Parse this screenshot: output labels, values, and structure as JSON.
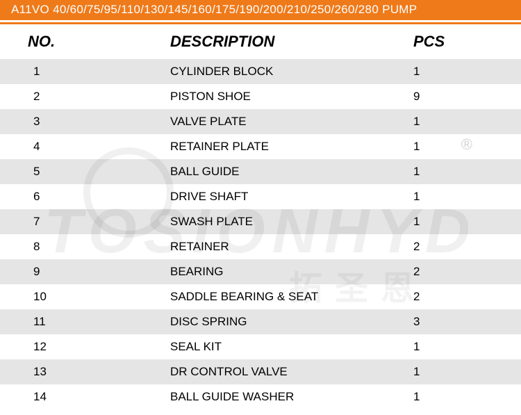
{
  "title": "A11VO 40/60/75/95/110/130/145/160/175/190/200/210/250/260/280  PUMP",
  "watermark": {
    "main": "TOSIONHYD",
    "sub": "拓圣恩",
    "reg": "®"
  },
  "colors": {
    "header_bg": "#ef7a1a",
    "header_text": "#ffffff",
    "row_shade": "rgba(0,0,0,0.10)",
    "text": "#000000",
    "watermark": "rgba(0,0,0,0.06)"
  },
  "columns": {
    "no": "NO.",
    "desc": "DESCRIPTION",
    "pcs": "PCS"
  },
  "rows": [
    {
      "no": "1",
      "desc": "CYLINDER BLOCK",
      "pcs": "1"
    },
    {
      "no": "2",
      "desc": "PISTON SHOE",
      "pcs": "9"
    },
    {
      "no": "3",
      "desc": "VALVE PLATE",
      "pcs": "1"
    },
    {
      "no": "4",
      "desc": "RETAINER PLATE",
      "pcs": "1"
    },
    {
      "no": "5",
      "desc": "BALL GUIDE",
      "pcs": "1"
    },
    {
      "no": "6",
      "desc": "DRIVE SHAFT",
      "pcs": "1"
    },
    {
      "no": "7",
      "desc": "SWASH PLATE",
      "pcs": "1"
    },
    {
      "no": "8",
      "desc": "RETAINER",
      "pcs": "2"
    },
    {
      "no": "9",
      "desc": "BEARING",
      "pcs": "2"
    },
    {
      "no": "10",
      "desc": "SADDLE BEARING & SEAT",
      "pcs": "2"
    },
    {
      "no": "11",
      "desc": "DISC SPRING",
      "pcs": "3"
    },
    {
      "no": "12",
      "desc": "SEAL KIT",
      "pcs": "1"
    },
    {
      "no": "13",
      "desc": "DR CONTROL VALVE",
      "pcs": "1"
    },
    {
      "no": "14",
      "desc": "BALL GUIDE WASHER",
      "pcs": "1"
    }
  ]
}
